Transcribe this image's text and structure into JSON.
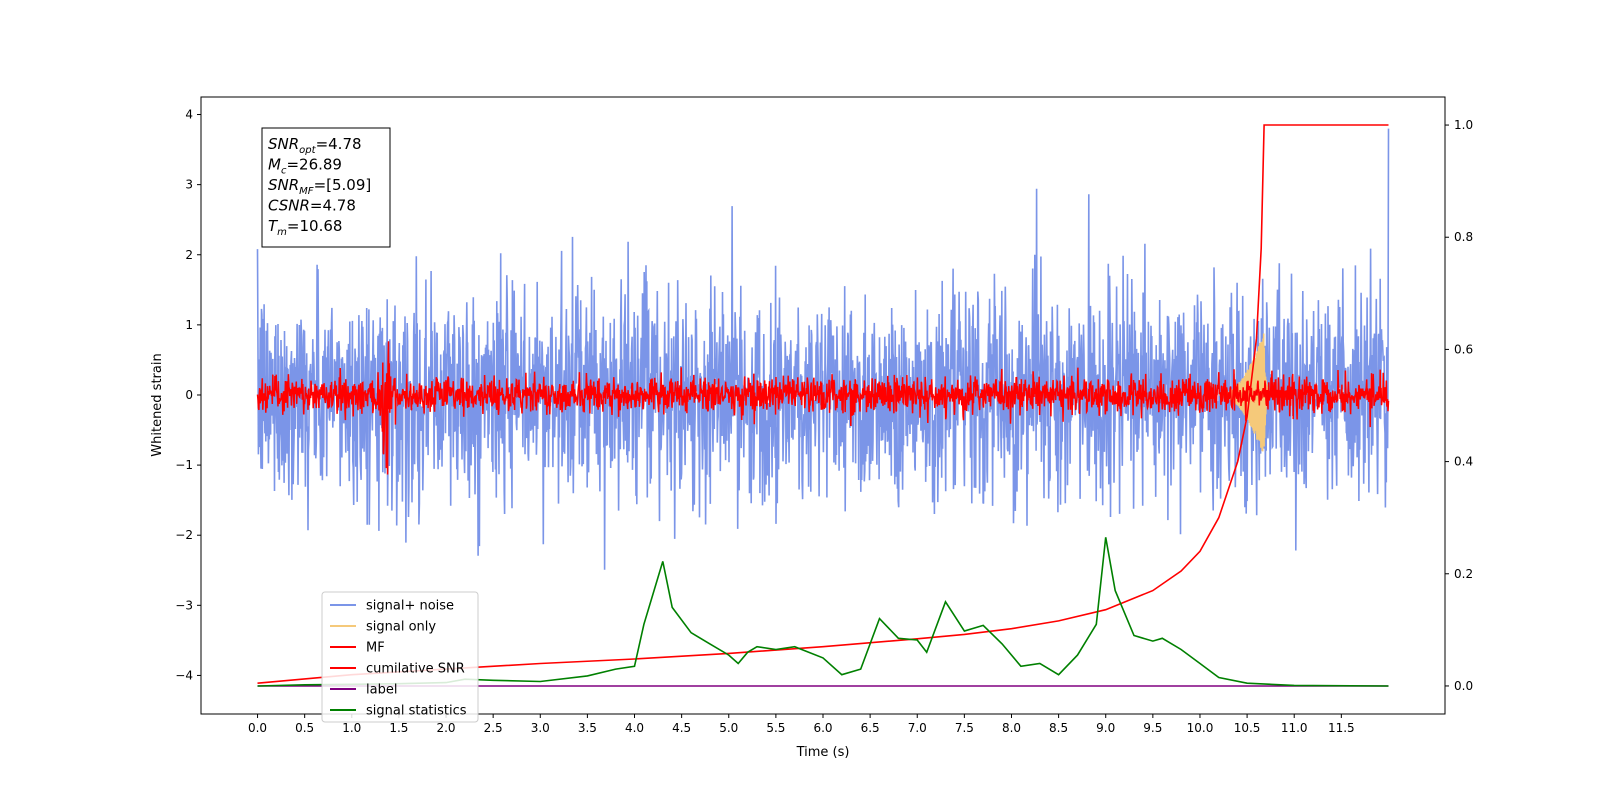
{
  "chart_data": {
    "type": "line",
    "xlabel": "Time (s)",
    "ylabel": "Whitened strain",
    "xlim": [
      -0.6,
      12.6
    ],
    "ylim": [
      -4.55,
      4.25
    ],
    "y2lim": [
      -0.05,
      1.05
    ],
    "x_ticks": [
      0.0,
      0.5,
      1.0,
      1.5,
      2.0,
      2.5,
      3.0,
      3.5,
      4.0,
      4.5,
      5.0,
      5.5,
      6.0,
      6.5,
      7.0,
      7.5,
      8.0,
      8.5,
      9.0,
      9.5,
      10.0,
      10.5,
      11.0,
      11.5
    ],
    "x_tick_labels": [
      "0.0",
      "0.5",
      "1.0",
      "1.5",
      "2.0",
      "2.5",
      "3.0",
      "3.5",
      "4.0",
      "4.5",
      "5.0",
      "5.5",
      "6.0",
      "6.5",
      "7.0",
      "7.5",
      "8.0",
      "8.5",
      "9.0",
      "9.5",
      "10.0",
      "10.5",
      "11.0",
      "11.5"
    ],
    "y_ticks": [
      4,
      3,
      2,
      1,
      0,
      -1,
      -2,
      -3,
      -4
    ],
    "y_tick_labels": [
      "4",
      "3",
      "2",
      "1",
      "0",
      "−1",
      "−2",
      "−3",
      "−4"
    ],
    "y2_ticks": [
      1.0,
      0.8,
      0.6,
      0.4,
      0.2,
      0.0
    ],
    "y2_tick_labels": [
      "1.0",
      "0.8",
      "0.6",
      "0.4",
      "0.2",
      "0.0"
    ],
    "grid": false,
    "legend_placement": "lower-left",
    "annotation": [
      {
        "main": "SNR",
        "sub": "opt",
        "rest": "=4.78"
      },
      {
        "main": "M",
        "sub": "c",
        "rest": "=26.89"
      },
      {
        "main": "SNR",
        "sub": "MF",
        "rest": "=[5.09]"
      },
      {
        "main": "CSNR",
        "sub": "",
        "rest": "=4.78"
      },
      {
        "main": "T",
        "sub": "m",
        "rest": "=10.68"
      }
    ],
    "series": [
      {
        "name": "signal+ noise",
        "color": "#7b95e8",
        "axis": "left",
        "kind": "noise",
        "amplitude_std": 0.75
      },
      {
        "name": "signal only",
        "color": "#f5c97a",
        "axis": "left",
        "kind": "chirp",
        "merger_time": 10.68
      },
      {
        "name": "MF",
        "color": "#ff0000",
        "axis": "left",
        "kind": "noise",
        "amplitude_std": 0.13
      },
      {
        "name": "cumilative SNR",
        "color": "#ff0000",
        "axis": "right",
        "kind": "curve",
        "x": [
          0.0,
          1.0,
          2.0,
          3.0,
          4.0,
          5.0,
          6.0,
          7.0,
          7.5,
          8.0,
          8.5,
          9.0,
          9.5,
          9.8,
          10.0,
          10.2,
          10.4,
          10.5,
          10.6,
          10.65,
          10.68,
          12.0
        ],
        "y": [
          0.005,
          0.02,
          0.03,
          0.04,
          0.048,
          0.058,
          0.07,
          0.084,
          0.092,
          0.102,
          0.116,
          0.136,
          0.17,
          0.205,
          0.24,
          0.3,
          0.4,
          0.48,
          0.62,
          0.78,
          1.0,
          1.0
        ]
      },
      {
        "name": "label",
        "color": "#800080",
        "axis": "right",
        "kind": "curve",
        "x": [
          0.0,
          12.0
        ],
        "y": [
          0.0,
          0.0
        ]
      },
      {
        "name": "signal statistics",
        "color": "#008000",
        "axis": "right",
        "kind": "curve",
        "x": [
          0.0,
          0.5,
          1.0,
          1.5,
          2.0,
          2.2,
          2.5,
          3.0,
          3.5,
          3.8,
          4.0,
          4.1,
          4.3,
          4.4,
          4.6,
          4.8,
          5.0,
          5.1,
          5.2,
          5.3,
          5.5,
          5.7,
          6.0,
          6.2,
          6.4,
          6.6,
          6.8,
          7.0,
          7.1,
          7.3,
          7.5,
          7.7,
          7.9,
          8.1,
          8.3,
          8.5,
          8.7,
          8.9,
          9.0,
          9.1,
          9.3,
          9.5,
          9.6,
          9.8,
          10.0,
          10.2,
          10.5,
          11.0,
          12.0
        ],
        "y": [
          0.0,
          0.002,
          0.003,
          0.004,
          0.006,
          0.012,
          0.01,
          0.008,
          0.018,
          0.03,
          0.035,
          0.11,
          0.222,
          0.14,
          0.095,
          0.075,
          0.055,
          0.04,
          0.06,
          0.07,
          0.065,
          0.07,
          0.05,
          0.02,
          0.03,
          0.12,
          0.085,
          0.082,
          0.06,
          0.15,
          0.098,
          0.108,
          0.075,
          0.035,
          0.04,
          0.02,
          0.055,
          0.11,
          0.265,
          0.17,
          0.09,
          0.08,
          0.085,
          0.065,
          0.04,
          0.015,
          0.005,
          0.001,
          0.0
        ]
      }
    ]
  }
}
